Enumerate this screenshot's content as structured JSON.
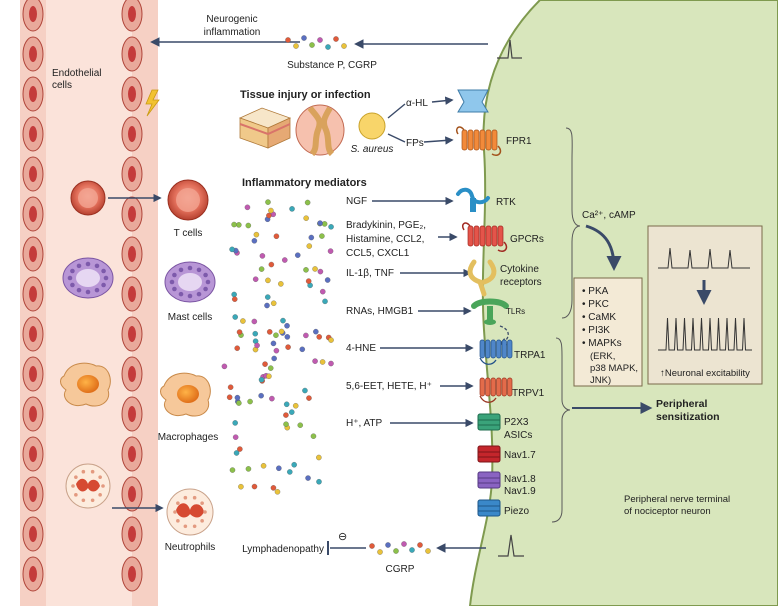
{
  "labels": {
    "neurogenic_line1": "Neurogenic",
    "neurogenic_line2": "inflammation",
    "substance_p": "Substance P, CGRP",
    "endothelial_line1": "Endothelial",
    "endothelial_line2": "cells",
    "tissue_injury": "Tissue injury or infection",
    "s_aureus": "S. aureus",
    "alpha_hl": "α-HL",
    "fps": "FPs",
    "fpr1": "FPR1",
    "inflammatory_mediators": "Inflammatory mediators",
    "t_cells": "T cells",
    "mast_cells": "Mast cells",
    "macrophages": "Macrophages",
    "neutrophils": "Neutrophils",
    "ngf": "NGF",
    "rtk": "RTK",
    "gpcr_ligands_line1": "Bradykinin, PGE₂,",
    "gpcr_ligands_line2": "Histamine, CCL2,",
    "gpcr_ligands_line3": "CCL5, CXCL1",
    "gpcrs": "GPCRs",
    "il1b_tnf": "IL-1β, TNF",
    "cytokine_line1": "Cytokine",
    "cytokine_line2": "receptors",
    "rnas_hmgb1": "RNAs, HMGB1",
    "tlrs": "TLRs",
    "hne": "4-HNE",
    "trpa1": "TRPA1",
    "eet": "5,6-EET, HETE, H⁺",
    "trpv1": "TRPV1",
    "h_atp": "H⁺, ATP",
    "p2x3": "P2X3",
    "asics": "ASICs",
    "nav17": "Nav1.7",
    "nav18": "Nav1.8",
    "nav19": "Nav1.9",
    "piezo": "Piezo",
    "ca_camp": "Ca²⁺, cAMP",
    "kinases": [
      "PKA",
      "PKC",
      "CaMK",
      "PI3K",
      "MAPKs"
    ],
    "mapk_sub": [
      "(ERK,",
      "p38 MAPK,",
      "JNK)"
    ],
    "neuronal_excitability": "↑Neuronal excitability",
    "peripheral_line1": "Peripheral",
    "peripheral_line2": "sensitization",
    "terminal_line1": "Peripheral nerve terminal",
    "terminal_line2": "of nociceptor neuron",
    "lymphadenopathy": "Lymphadenopathy",
    "inhibit_sign": "⊖",
    "cgrp": "CGRP"
  },
  "colors": {
    "vessel": "#f6d0c4",
    "endothelial_cell": "#c43b3b",
    "neuron": "#d8e6bc",
    "neuron_edge": "#7f9a4f",
    "arrow": "#3a4a68",
    "kinase_box": "#f3ead6",
    "excitability_box": "#ece4d1"
  }
}
